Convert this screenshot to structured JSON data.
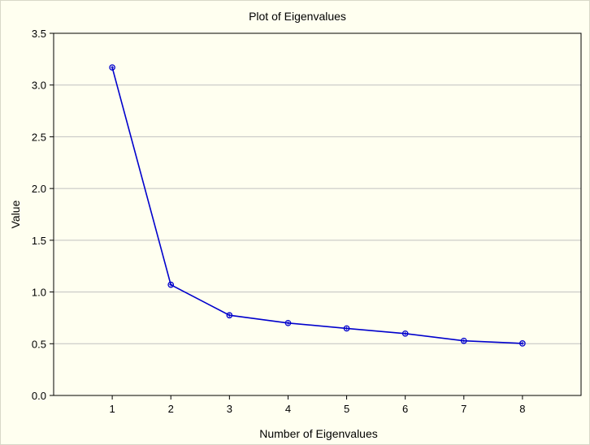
{
  "chart_data": {
    "type": "line",
    "title": "Plot of Eigenvalues",
    "xlabel": "Number of Eigenvalues",
    "ylabel": "Value",
    "x": [
      1,
      2,
      3,
      4,
      5,
      6,
      7,
      8
    ],
    "values": [
      3.17,
      1.07,
      0.775,
      0.7,
      0.648,
      0.598,
      0.528,
      0.503
    ],
    "xlim": [
      0,
      9
    ],
    "ylim": [
      0,
      3.5
    ],
    "x_ticks": [
      "1",
      "2",
      "3",
      "4",
      "5",
      "6",
      "7",
      "8"
    ],
    "y_ticks": [
      "0.0",
      "0.5",
      "1.0",
      "1.5",
      "2.0",
      "2.5",
      "3.0",
      "3.5"
    ],
    "grid": "horizontal",
    "marker": "circle",
    "colors": {
      "line": "#0000CC",
      "marker": "#0000CC",
      "background": "#FFFFF0",
      "grid": "#C0C0C0",
      "axis": "#000000"
    }
  }
}
